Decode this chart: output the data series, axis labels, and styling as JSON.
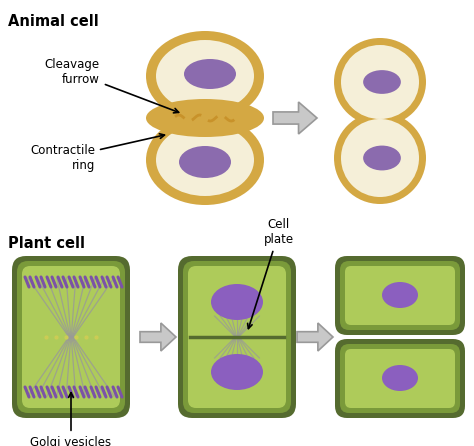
{
  "title_animal": "Animal cell",
  "title_plant": "Plant cell",
  "label_cleavage": "Cleavage\nfurrow",
  "label_contractile": "Contractile\nring",
  "label_cell_plate": "Cell\nplate",
  "label_golgi": "Golgi vesicles",
  "bg_color": "#ffffff",
  "cell_outer_color": "#D4A843",
  "cell_inner_color": "#F5EFD8",
  "nucleus_color": "#8B6BAE",
  "plant_outer_color": "#556B2F",
  "plant_mid_color": "#7A9A3A",
  "plant_cell_color": "#AECB5A",
  "plant_nucleus_color": "#8B5FBF",
  "arrow_fill": "#C8C8C8",
  "arrow_edge": "#999999",
  "label_color": "#000000",
  "cleavage_color": "#C8922A",
  "spindle_color": "#999999",
  "chromosome_color": "#7B52A7"
}
